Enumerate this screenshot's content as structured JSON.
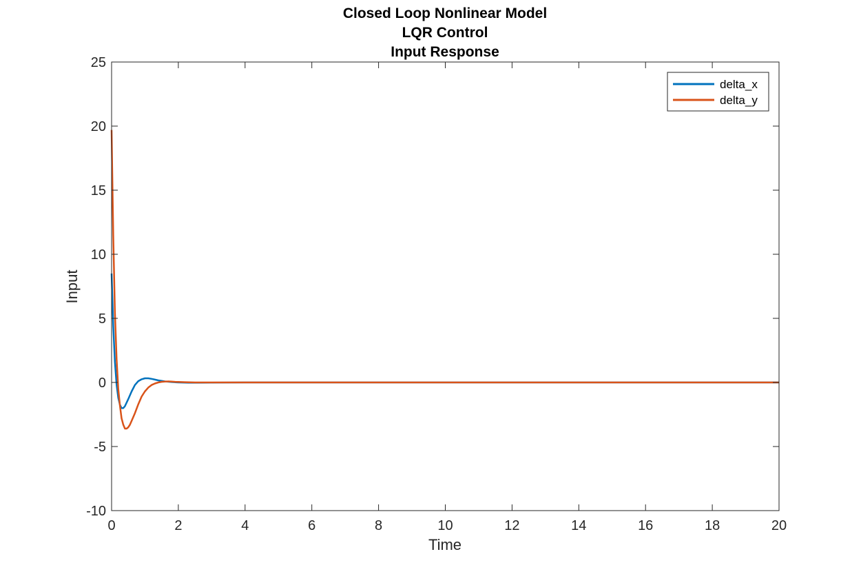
{
  "chart_data": {
    "type": "line",
    "title": [
      "Closed Loop Nonlinear Model",
      "LQR Control",
      "Input Response"
    ],
    "xlabel": "Time",
    "ylabel": "Input",
    "xlim": [
      0,
      20
    ],
    "ylim": [
      -10,
      25
    ],
    "xticks": [
      0,
      2,
      4,
      6,
      8,
      10,
      12,
      14,
      16,
      18,
      20
    ],
    "yticks": [
      -10,
      -5,
      0,
      5,
      10,
      15,
      20,
      25
    ],
    "grid": false,
    "legend_position": "top-right",
    "series": [
      {
        "name": "delta_x",
        "color": "#0072BD",
        "x": [
          0,
          0.05,
          0.1,
          0.15,
          0.2,
          0.25,
          0.3,
          0.35,
          0.4,
          0.5,
          0.6,
          0.7,
          0.8,
          0.9,
          1.0,
          1.1,
          1.2,
          1.3,
          1.4,
          1.6,
          1.8,
          2.0,
          2.3,
          2.6,
          3.0,
          4,
          6,
          8,
          10,
          12,
          14,
          16,
          18,
          20
        ],
        "y": [
          8.5,
          4.4,
          1.6,
          -0.2,
          -1.2,
          -1.75,
          -2.0,
          -2.0,
          -1.85,
          -1.3,
          -0.7,
          -0.2,
          0.1,
          0.25,
          0.32,
          0.32,
          0.28,
          0.22,
          0.16,
          0.08,
          0.03,
          0.0,
          -0.02,
          -0.02,
          -0.01,
          0,
          0,
          0,
          0,
          0,
          0,
          0,
          0,
          0
        ]
      },
      {
        "name": "delta_y",
        "color": "#D95319",
        "x": [
          0,
          0.05,
          0.1,
          0.15,
          0.2,
          0.25,
          0.3,
          0.35,
          0.4,
          0.45,
          0.5,
          0.55,
          0.6,
          0.7,
          0.8,
          0.9,
          1.0,
          1.1,
          1.2,
          1.3,
          1.4,
          1.5,
          1.6,
          1.7,
          1.8,
          1.9,
          2.0,
          2.2,
          2.5,
          3.0,
          4,
          6,
          8,
          10,
          12,
          14,
          16,
          18,
          20
        ],
        "y": [
          19.7,
          11.5,
          5.5,
          1.8,
          -0.5,
          -1.8,
          -2.8,
          -3.3,
          -3.6,
          -3.6,
          -3.5,
          -3.3,
          -3.0,
          -2.4,
          -1.7,
          -1.1,
          -0.7,
          -0.4,
          -0.2,
          -0.08,
          0.0,
          0.05,
          0.07,
          0.08,
          0.07,
          0.05,
          0.04,
          0.02,
          0.0,
          0.0,
          0,
          0,
          0,
          0,
          0,
          0,
          0,
          0,
          0
        ]
      }
    ]
  }
}
